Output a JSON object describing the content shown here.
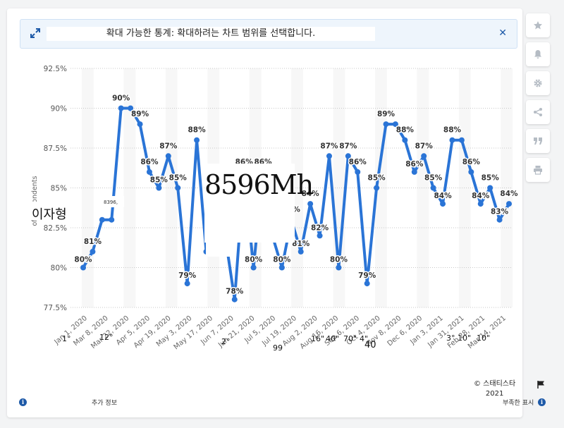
{
  "banner": {
    "text": "확대 가능한 통계: 확대하려는 차트 범위를 선택합니다."
  },
  "sidebar": {
    "items": [
      "star-icon",
      "bell-icon",
      "gear-icon",
      "share-icon",
      "quote-icon",
      "print-icon"
    ]
  },
  "chart_data": {
    "type": "line",
    "title": "",
    "xlabel": "",
    "ylabel": "of respondents",
    "ylim": [
      77.5,
      92.5
    ],
    "yticks": [
      "92.5%",
      "90%",
      "87.5%",
      "85%",
      "82.5%",
      "80%",
      "77.5%"
    ],
    "grid": "horizontal dotted",
    "series_color": "#2a74d6",
    "xtick_labels": [
      "Jan 1, 2020",
      "Mar 8, 2020",
      "Mar 22, 2020",
      "Apr 5, 2020",
      "Apr 19, 2020",
      "May 3, 2020",
      "May 17, 2020",
      "Jun 7, 2020",
      "Jun 21, 2020",
      "Jul 5, 2020",
      "Jul 19, 2020",
      "Aug 2, 2020",
      "Aug 16, 2020",
      "Sep 6, 2020",
      "Oct 4, 2020",
      "Nov 8, 2020",
      "Dec 6, 2020",
      "Jan 3, 2021",
      "Jan 31, 2021",
      "Feb 28, 2021",
      "Mar 14, 2021"
    ],
    "series": [
      {
        "values": [
          80,
          81,
          83,
          83,
          90,
          90,
          89,
          86,
          85,
          87,
          85,
          79,
          88,
          81,
          86,
          82,
          78,
          86,
          80,
          86,
          82,
          80,
          83,
          81,
          84,
          82,
          87,
          80,
          87,
          86,
          79,
          85,
          89,
          89,
          88,
          86,
          87,
          85,
          84,
          88,
          88,
          86,
          84,
          85,
          83,
          84
        ]
      }
    ],
    "data_labels": [
      "80%",
      "81%",
      "",
      "",
      "90%",
      "",
      "89%",
      "86%",
      "85%",
      "87%",
      "85%",
      "79%",
      "88%",
      "",
      "",
      "",
      "78%",
      "86%",
      "80%",
      "86%",
      "",
      "80%",
      "83%",
      "81%",
      "84%",
      "82%",
      "87%",
      "80%",
      "87%",
      "86%",
      "79%",
      "85%",
      "89%",
      "",
      "88%",
      "86%",
      "87%",
      "85%",
      "84%",
      "88%",
      "",
      "86%",
      "84%",
      "85%",
      "83%",
      "84%"
    ]
  },
  "overlays": {
    "big_text": "8596Mh",
    "name_text": "이자형",
    "small_text": "8396,",
    "x_fragments": [
      "1°",
      "12°",
      "2°",
      "99",
      "16\"",
      "40\"",
      "70\"",
      "4\"",
      "40",
      "3°",
      "10\"",
      "10\""
    ]
  },
  "footer": {
    "copyright": "© 스태티스타",
    "year": "2021",
    "more_info": "추가 정보",
    "hide": "부족한 표시"
  }
}
